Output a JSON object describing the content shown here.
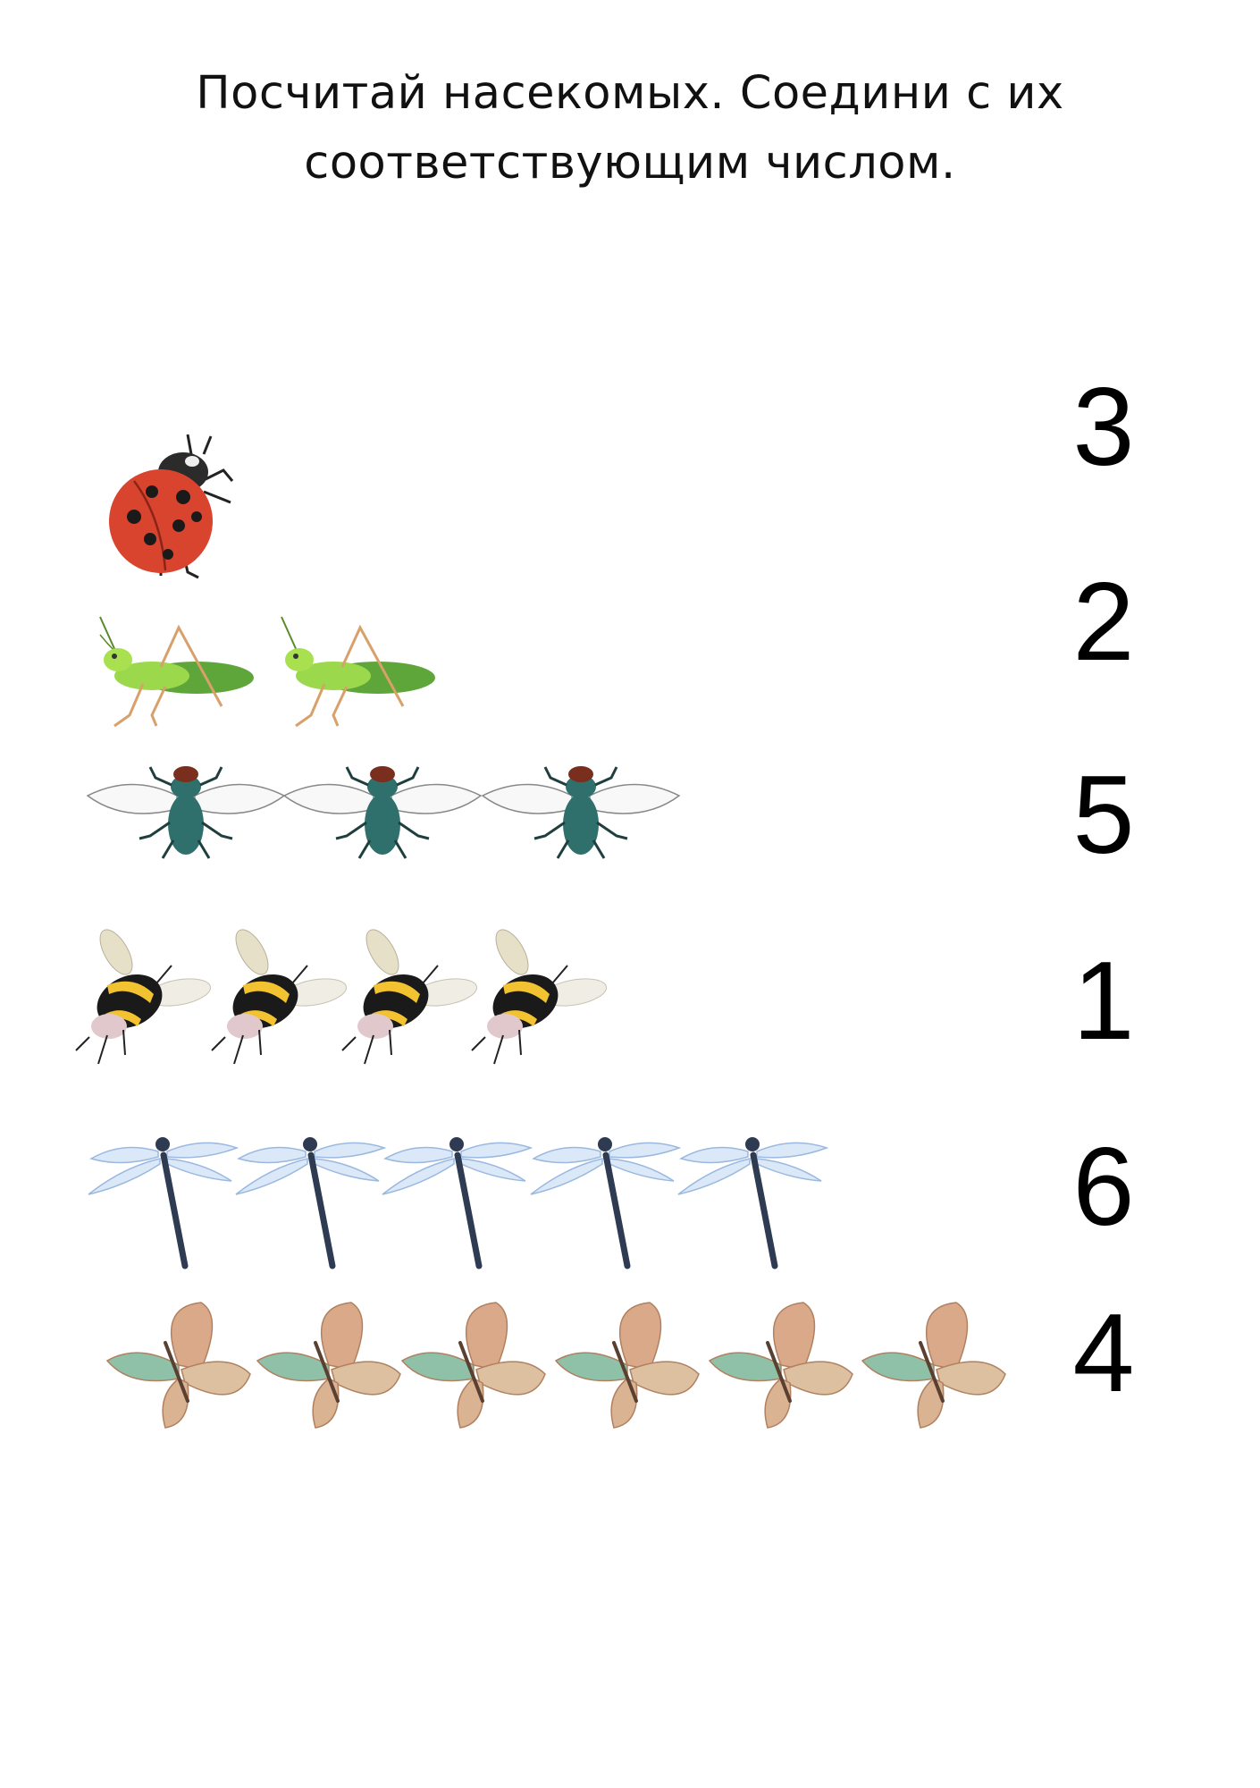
{
  "instructions": {
    "line1": "Посчитай насекомых. Соедини с их",
    "line2": "соответствующим числом."
  },
  "rows": [
    {
      "insect": "ladybug-icon",
      "count": 1
    },
    {
      "insect": "grasshopper-icon",
      "count": 2
    },
    {
      "insect": "fly-icon",
      "count": 3
    },
    {
      "insect": "bumblebee-icon",
      "count": 4
    },
    {
      "insect": "dragonfly-icon",
      "count": 5
    },
    {
      "insect": "butterfly-icon",
      "count": 6
    }
  ],
  "numbers": [
    "3",
    "2",
    "5",
    "1",
    "6",
    "4"
  ],
  "colors": {
    "ladybug": "#d9442f",
    "grasshopper": "#7fc43b",
    "fly": "#2f6f6c",
    "bumblebee": "#f2c230",
    "dragonfly": "#2e3b52",
    "butterfly": "#d9a98a"
  }
}
